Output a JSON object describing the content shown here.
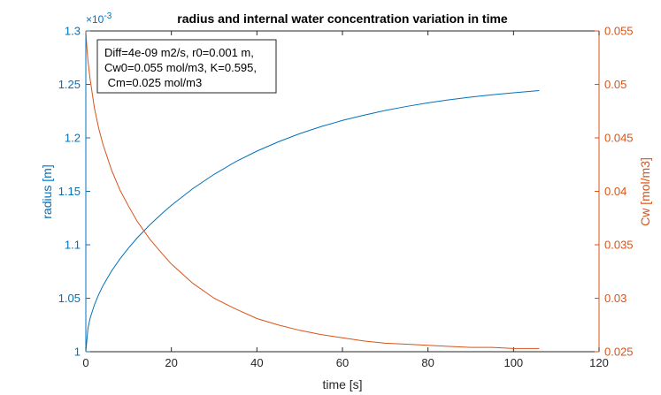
{
  "chart_data": {
    "type": "line",
    "title": "radius and internal water concentration variation in time",
    "xlabel": "time [s]",
    "ylabel_left": "radius [m]",
    "ylabel_right": "Cw [mol/m3]",
    "xlim": [
      0,
      120
    ],
    "ylim_left": [
      0.001,
      0.0013
    ],
    "ylim_right": [
      0.025,
      0.055
    ],
    "x_ticks": [
      "0",
      "20",
      "40",
      "60",
      "80",
      "100",
      "120"
    ],
    "y_left_ticks": [
      "1",
      "1.05",
      "1.1",
      "1.15",
      "1.2",
      "1.25",
      "1.3"
    ],
    "y_left_exponent": "×10",
    "y_left_exponent_power": "-3",
    "y_right_ticks": [
      "0.025",
      "0.03",
      "0.035",
      "0.04",
      "0.045",
      "0.05",
      "0.055"
    ],
    "grid": false,
    "annotation": {
      "lines": [
        "Diff=4e-09 m2/s, r0=0.001 m,",
        "Cw0=0.055 mol/m3, K=0.595,",
        " Cm=0.025 mol/m3"
      ]
    },
    "series": [
      {
        "axis": "left",
        "color": "#0072BD",
        "x": [
          0,
          0.5,
          1,
          2,
          3,
          4,
          6,
          8,
          10,
          12,
          15,
          18,
          20,
          25,
          30,
          35,
          40,
          45,
          50,
          55,
          60,
          65,
          70,
          75,
          80,
          85,
          90,
          95,
          100,
          106
        ],
        "y": [
          0.001,
          0.0010221,
          0.0010313,
          0.0010438,
          0.0010535,
          0.0010617,
          0.0010754,
          0.0010869,
          0.0010971,
          0.0011064,
          0.0011188,
          0.00113,
          0.0011369,
          0.0011525,
          0.0011659,
          0.0011776,
          0.0011876,
          0.0011963,
          0.0012039,
          0.0012105,
          0.0012163,
          0.0012212,
          0.0012256,
          0.0012294,
          0.0012327,
          0.0012356,
          0.0012381,
          0.0012403,
          0.0012422,
          0.0012442
        ]
      },
      {
        "axis": "right",
        "color": "#D95319",
        "x": [
          0,
          0.25,
          0.5,
          1,
          2,
          3,
          4,
          6,
          8,
          10,
          12,
          15,
          18,
          20,
          25,
          30,
          35,
          40,
          45,
          50,
          55,
          60,
          65,
          70,
          75,
          80,
          85,
          90,
          95,
          100,
          106
        ],
        "y": [
          0.055,
          0.0534,
          0.0522,
          0.0505,
          0.0478,
          0.0459,
          0.0444,
          0.042,
          0.0401,
          0.0386,
          0.0372,
          0.0355,
          0.0341,
          0.0332,
          0.0314,
          0.03,
          0.029,
          0.0281,
          0.0275,
          0.027,
          0.0266,
          0.0263,
          0.026,
          0.0258,
          0.0257,
          0.0256,
          0.0255,
          0.0254,
          0.0254,
          0.0253,
          0.0253
        ]
      }
    ]
  }
}
